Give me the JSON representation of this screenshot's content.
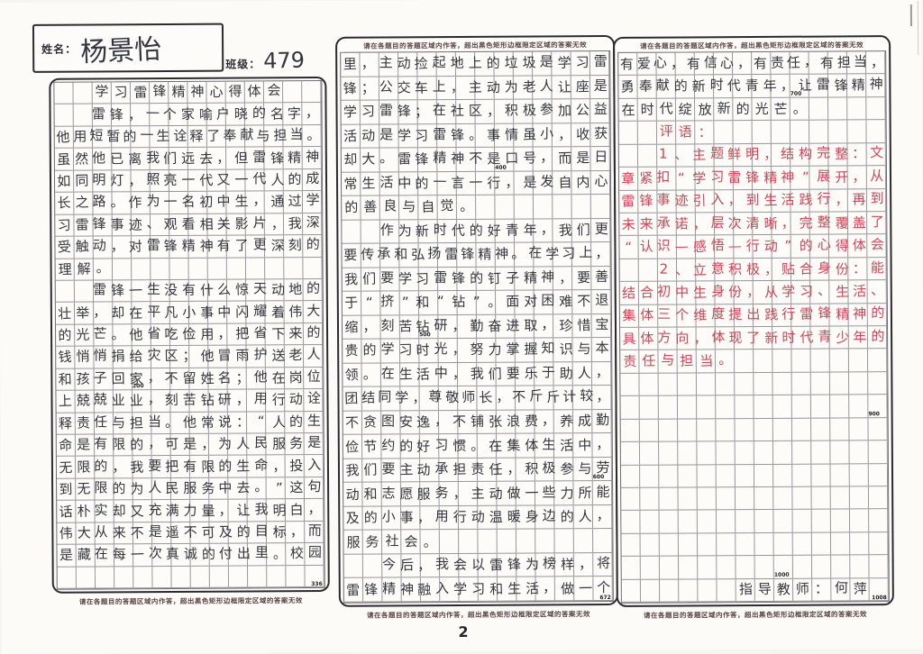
{
  "page": {
    "number": "2",
    "boundary_note": "请在各题目的答题区域内作答，超出黑色矩形边框限定区域的答案无效"
  },
  "student": {
    "name_label": "姓名：",
    "name": "杨景怡",
    "class_label": "班级：",
    "class_value": "479"
  },
  "essay_title": "学习雷锋精神心得体会",
  "teacher_signature": "指导教师：何萍",
  "colors": {
    "black_ink": "#33363d",
    "red_ink": "#cf4456",
    "grid_line": "#96969b",
    "border": "#2a2a2f"
  },
  "columns": [
    {
      "id": "left",
      "corner": "336",
      "markers": [
        {
          "row": 14,
          "cell": 5,
          "label": "200"
        }
      ],
      "rows": [
        {
          "t": "　　学习雷锋精神心得体会",
          "ink": "black"
        },
        {
          "t": "　　雷锋，一个家喻户晓的名字，",
          "ink": "black"
        },
        {
          "t": "他用短暂的一生诠释了奉献与担当。",
          "ink": "black"
        },
        {
          "t": "虽然他已离我们远去，但雷锋精神",
          "ink": "black"
        },
        {
          "t": "如同明灯，照亮一代又一代人的成",
          "ink": "black"
        },
        {
          "t": "长之路。作为一名初中生，通过学",
          "ink": "black"
        },
        {
          "t": "习雷锋事迹、观看相关影片，我深",
          "ink": "black"
        },
        {
          "t": "受触动，对雷锋精神有了更深刻的",
          "ink": "black"
        },
        {
          "t": "理解。",
          "ink": "black"
        },
        {
          "t": "　　雷锋一生没有什么惊天动地的",
          "ink": "black"
        },
        {
          "t": "壮举，却在平凡小事中闪耀着伟大",
          "ink": "black"
        },
        {
          "t": "的光芒。他省吃俭用，把省下来的",
          "ink": "black"
        },
        {
          "t": "钱悄悄捐给灾区；他冒雨护送老人",
          "ink": "black"
        },
        {
          "t": "和孩子回家，不留姓名；他在岗位",
          "ink": "black"
        },
        {
          "t": "上兢兢业业，刻苦钻研，用行动诠",
          "ink": "black"
        },
        {
          "t": "释责任与担当。他常说：“人的生",
          "ink": "black"
        },
        {
          "t": "命是有限的，可是，为人民服务是",
          "ink": "black"
        },
        {
          "t": "无限的，我要把有限的生命，投入",
          "ink": "black"
        },
        {
          "t": "到无限的为人民服务中去。”这句",
          "ink": "black"
        },
        {
          "t": "话朴实却又充满力量，让我明白，",
          "ink": "black"
        },
        {
          "t": "伟大从来不是遥不可及的目标，而",
          "ink": "black"
        },
        {
          "t": "是藏在每一次真诚的付出里。校园",
          "ink": "black"
        },
        {
          "t": "",
          "ink": "black"
        }
      ]
    },
    {
      "id": "middle",
      "corner": "672",
      "markers": [
        {
          "row": 5,
          "cell": 9,
          "label": "400"
        },
        {
          "row": 12,
          "cell": 5,
          "label": "500"
        },
        {
          "row": 18,
          "cell": 14,
          "label": "600"
        }
      ],
      "rows": [
        {
          "t": "里，主动捡起地上的垃圾是学习雷",
          "ink": "black"
        },
        {
          "t": "锋；公交车上，主动为老人让座是",
          "ink": "black"
        },
        {
          "t": "学习雷锋；在社区，积极参加公益",
          "ink": "black"
        },
        {
          "t": "活动是学习雷锋。事情虽小，收获",
          "ink": "black"
        },
        {
          "t": "却大。雷锋精神不是口号，而是日",
          "ink": "black"
        },
        {
          "t": "常生活中的一言一行，是发自内心",
          "ink": "black"
        },
        {
          "t": "的善良与自觉。",
          "ink": "black"
        },
        {
          "t": "　　作为新时代的好青年，我们更",
          "ink": "black"
        },
        {
          "t": "要传承和弘扬雷锋精神。在学习上，",
          "ink": "black"
        },
        {
          "t": "我们要学习雷锋的钉子精神，要善",
          "ink": "black"
        },
        {
          "t": "于“挤”和“钻”。面对困难不退",
          "ink": "black"
        },
        {
          "t": "缩，刻苦钻研，勤奋进取，珍惜宝",
          "ink": "black"
        },
        {
          "t": "贵的学习时光，努力掌握知识与本",
          "ink": "black"
        },
        {
          "t": "领。在生活中，我们要乐于助人，",
          "ink": "black"
        },
        {
          "t": "团结同学，尊敬师长，不斤斤计较，",
          "ink": "black"
        },
        {
          "t": "不贪图安逸，不铺张浪费，养成勤",
          "ink": "black"
        },
        {
          "t": "俭节约的好习惯。在集体生活中，",
          "ink": "black"
        },
        {
          "t": "我们要主动承担责任，积极参与劳",
          "ink": "black"
        },
        {
          "t": "动和志愿服务，主动做一些力所能",
          "ink": "black"
        },
        {
          "t": "及的小事，用行动温暖身边的人，",
          "ink": "black"
        },
        {
          "t": "服务社会。",
          "ink": "black"
        },
        {
          "t": "　　今后，我会以雷锋为榜样，将",
          "ink": "black"
        },
        {
          "t": "雷锋精神融入学习和生活，做一个",
          "ink": "black"
        }
      ]
    },
    {
      "id": "right",
      "corner": "1008",
      "markers": [
        {
          "row": 2,
          "cell": 10,
          "label": "700"
        },
        {
          "row": 16,
          "cell": 14,
          "label": "900"
        },
        {
          "row": 23,
          "cell": 9,
          "label": "1000"
        }
      ],
      "rows": [
        {
          "t": "有爱心，有信心，有责任，有担当，",
          "ink": "black"
        },
        {
          "t": "勇奉献的新时代青年，让雷锋精神",
          "ink": "black"
        },
        {
          "t": "在时代绽放新的光芒。",
          "ink": "black"
        },
        {
          "t": "　　评语：",
          "ink": "red"
        },
        {
          "t": "　　1、主题鲜明，结构完整：文",
          "ink": "red"
        },
        {
          "t": "章紧扣“学习雷锋精神”展开，从",
          "ink": "red"
        },
        {
          "t": "雷锋事迹引入，到生活践行，再到",
          "ink": "red"
        },
        {
          "t": "未来承诺，层次清晰，完整覆盖了",
          "ink": "red"
        },
        {
          "t": "“认识—感悟—行动”的心得体会",
          "ink": "red"
        },
        {
          "t": "　　2、立意积极，贴合身份：能",
          "ink": "red"
        },
        {
          "t": "结合初中生身份，从学习、生活、",
          "ink": "red"
        },
        {
          "t": "集体三个维度提出践行雷锋精神的",
          "ink": "red"
        },
        {
          "t": "具体方向，体现了新时代青少年的",
          "ink": "red"
        },
        {
          "t": "责任与担当。",
          "ink": "red"
        },
        {
          "t": "",
          "ink": "black"
        },
        {
          "t": "",
          "ink": "black"
        },
        {
          "t": "",
          "ink": "black"
        },
        {
          "t": "",
          "ink": "black"
        },
        {
          "t": "",
          "ink": "black"
        },
        {
          "t": "",
          "ink": "black"
        },
        {
          "t": "",
          "ink": "black"
        },
        {
          "t": "",
          "ink": "black"
        },
        {
          "t": "",
          "ink": "black"
        },
        {
          "t": "　　　　　　指导教师：何萍",
          "ink": "black"
        }
      ]
    }
  ]
}
